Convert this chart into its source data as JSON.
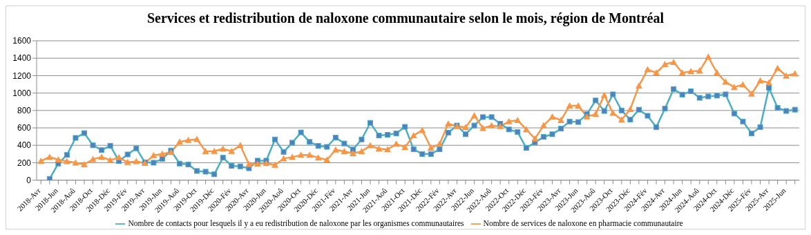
{
  "chart_data": {
    "type": "line",
    "title": "Services et redistribution de naloxone communautaire selon le mois, région de Montréal",
    "categories": [
      "2018-Avr",
      null,
      "2018-Jun",
      null,
      "2018-Aoû",
      null,
      "2018-Oct",
      null,
      "2018-Déc",
      null,
      "2019-Fév",
      null,
      "2019-Avr",
      null,
      "2019-Jun",
      null,
      "2019-Aoû",
      null,
      "2019-Oct",
      null,
      "2019-Déc",
      null,
      "2020-Fév",
      null,
      "2020-Avr",
      null,
      "2020-Jun",
      null,
      "2020-Aoû",
      null,
      "2020-Oct",
      null,
      "2020-Déc",
      null,
      "2021-Fév",
      null,
      "2021-Avr",
      null,
      "2021-Jun",
      null,
      "2021-Aoû",
      null,
      "2021-Oct",
      null,
      "2021-Déc",
      null,
      "2022-Fév",
      null,
      "2022-Avr",
      null,
      "2022-Jun",
      null,
      "2022-Aoû",
      null,
      "2022-Oct",
      null,
      "2022-Déc",
      null,
      "2023-Fév",
      null,
      "2023-Avr",
      null,
      "2023-Jun",
      null,
      "2023-Aoû",
      null,
      "2023-Oct",
      null,
      "2023-Déc",
      null,
      "2024-Fév",
      null,
      "2024-Avr",
      null,
      "2024-Jun",
      null,
      "2024-Aoû",
      null,
      "2024-Oct",
      null,
      "2024-Déc",
      null,
      "2025-Fév",
      null,
      "2025-Avr",
      null,
      "2025-Jun",
      null
    ],
    "series": [
      {
        "name": "Nombre de contacts pour lesquels il y a eu redistribution de naloxone par les organismes communautaires",
        "color": "#4bacc6",
        "marker": "square",
        "values": [
          null,
          15,
          190,
          290,
          485,
          540,
          400,
          345,
          395,
          220,
          295,
          365,
          205,
          200,
          245,
          340,
          190,
          180,
          105,
          97,
          67,
          258,
          164,
          158,
          136,
          224,
          224,
          467,
          324,
          430,
          548,
          439,
          394,
          382,
          488,
          421,
          352,
          467,
          658,
          512,
          521,
          536,
          612,
          355,
          300,
          300,
          355,
          545,
          627,
          527,
          627,
          724,
          724,
          648,
          582,
          552,
          370,
          433,
          497,
          527,
          591,
          673,
          667,
          758,
          915,
          794,
          985,
          800,
          694,
          809,
          739,
          609,
          821,
          1045,
          982,
          1021,
          945,
          961,
          970,
          985,
          764,
          673,
          536,
          609,
          1061,
          830,
          794,
          809
        ]
      },
      {
        "name": "Nombre de services de naloxone en pharmacie communautaire",
        "color": "#f79646",
        "marker": "triangle",
        "values": [
          220,
          265,
          235,
          215,
          200,
          180,
          240,
          265,
          230,
          260,
          205,
          215,
          195,
          285,
          300,
          320,
          440,
          460,
          470,
          330,
          333,
          360,
          333,
          400,
          182,
          188,
          194,
          173,
          248,
          264,
          288,
          288,
          258,
          233,
          348,
          330,
          306,
          330,
          397,
          360,
          352,
          415,
          379,
          512,
          573,
          370,
          415,
          648,
          618,
          606,
          742,
          597,
          627,
          618,
          673,
          688,
          582,
          476,
          627,
          727,
          688,
          855,
          855,
          730,
          758,
          976,
          770,
          694,
          815,
          1082,
          1270,
          1233,
          1330,
          1355,
          1233,
          1248,
          1255,
          1415,
          1233,
          1127,
          1067,
          1097,
          991,
          1142,
          1118,
          1285,
          1197,
          1224
        ]
      }
    ],
    "ylim": [
      0,
      1600
    ],
    "yticks": [
      0,
      200,
      400,
      600,
      800,
      1000,
      1200,
      1400,
      1600
    ],
    "grid": "y",
    "legend": "bottom"
  }
}
